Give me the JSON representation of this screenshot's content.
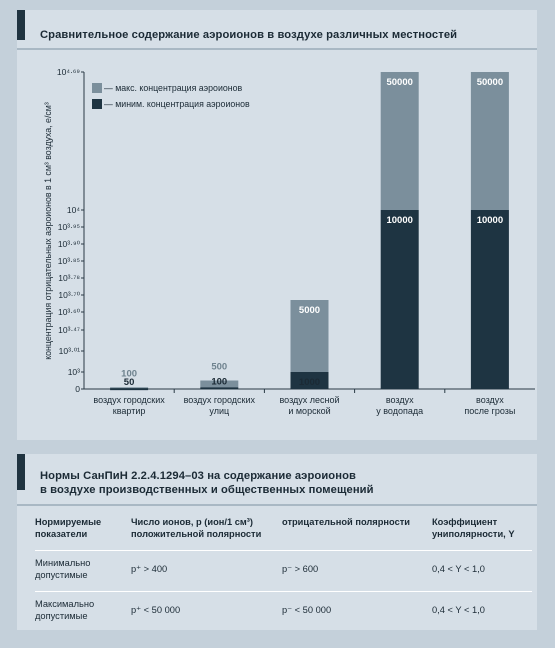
{
  "chart_title": "Сравнительное содержание аэроионов в воздухе различных местностей",
  "chart_data": {
    "type": "bar",
    "title": "Сравнительное содержание аэроионов в воздухе различных местностей",
    "ylabel": "концентрация отрицательных аэроионов в 1 см³ воздуха, e/см³",
    "y_scale": "irregular log-like ticks",
    "y_ticks": [
      "0",
      "10³",
      "10³·⁰¹",
      "10³·⁴⁷",
      "10³·⁶⁰",
      "10³·⁷⁰",
      "10³·⁷⁸",
      "10³·⁸⁵",
      "10³·⁹⁰",
      "10³·⁹⁵",
      "10⁴",
      "10⁴·⁶⁹"
    ],
    "categories": [
      [
        "воздух городских",
        "квартир"
      ],
      [
        "воздух городских",
        "улиц"
      ],
      [
        "воздух лесной",
        "и морской"
      ],
      [
        "воздух",
        "у водопада"
      ],
      [
        "воздух",
        "после грозы"
      ]
    ],
    "series": [
      {
        "name": "миним. концентрация аэроионов",
        "color": "#1e3442",
        "values": [
          50,
          100,
          1000,
          10000,
          10000
        ]
      },
      {
        "name": "макс. концентрация аэроионов",
        "color": "#7b8f9c",
        "values": [
          100,
          500,
          5000,
          50000,
          50000
        ]
      }
    ],
    "legend": [
      "— макс. концентрация аэроионов",
      "— миним. концентрация аэроионов"
    ],
    "legend_position": "top-left",
    "grid": true
  },
  "table_title": [
    "Нормы СанПиН 2.2.4.1294–03 на содержание аэроионов",
    "в воздухе производственных и общественных помещений"
  ],
  "table": {
    "headers": [
      [
        "Нормируемые",
        "показатели"
      ],
      [
        "Число ионов, p (ион/1 см³)",
        "положительной полярности"
      ],
      [
        "",
        "отрицательной полярности"
      ],
      [
        "Коэффициент",
        "униполярности, Y"
      ]
    ],
    "rows": [
      {
        "label": [
          "Минимально",
          "допустимые"
        ],
        "pos": "p⁺ > 400",
        "neg": "p⁻ > 600",
        "coef": "0,4 < Y < 1,0"
      },
      {
        "label": [
          "Максимально",
          "допустимые"
        ],
        "pos": "p⁺ < 50 000",
        "neg": "p⁻ < 50 000",
        "coef": "0,4 < Y < 1,0"
      }
    ]
  }
}
